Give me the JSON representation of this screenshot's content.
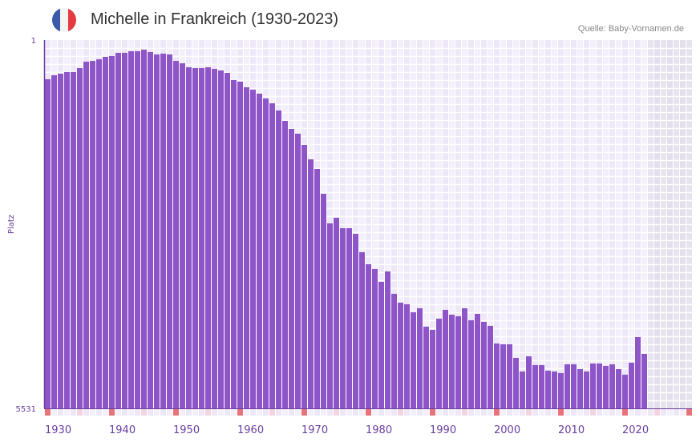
{
  "chart_data": {
    "type": "bar",
    "title": "Michelle in Frankreich (1930-2023)",
    "source": "Quelle: Baby-Vornamen.de",
    "ylabel": "Platz",
    "xlabel": "",
    "ylim": [
      5531,
      1
    ],
    "ytick_labels": [
      "1",
      "5531"
    ],
    "xtick_labels": [
      "1930",
      "1940",
      "1950",
      "1960",
      "1970",
      "1980",
      "1990",
      "2000",
      "2010",
      "2020"
    ],
    "x_start": 1930,
    "x_end_axis": 2030,
    "values": [
      590,
      530,
      506,
      482,
      482,
      422,
      326,
      314,
      290,
      253,
      241,
      193,
      193,
      169,
      169,
      145,
      181,
      217,
      205,
      217,
      314,
      350,
      410,
      422,
      422,
      410,
      434,
      458,
      494,
      602,
      626,
      710,
      746,
      806,
      878,
      951,
      1059,
      1215,
      1335,
      1407,
      1575,
      1792,
      1936,
      2309,
      2753,
      2669,
      2826,
      2826,
      2910,
      3186,
      3367,
      3439,
      3631,
      3475,
      3811,
      3944,
      3968,
      4088,
      4028,
      4304,
      4352,
      4184,
      4052,
      4124,
      4148,
      4028,
      4208,
      4112,
      4232,
      4292,
      4557,
      4569,
      4569,
      4773,
      4977,
      4749,
      4881,
      4881,
      4965,
      4977,
      5001,
      4869,
      4869,
      4941,
      4977,
      4857,
      4857,
      4893,
      4869,
      4941,
      5025,
      4845,
      4460,
      4713
    ],
    "colors": {
      "bar": "#8e55c8",
      "axis": "#6a3fa0",
      "decade_marker": "#e8737a",
      "half_decade_marker": "#f3d5de",
      "future_shade": "#e6e2ee"
    }
  },
  "flag": {
    "colors": [
      "#3b5aa8",
      "#f4f4f4",
      "#e53a3f"
    ]
  }
}
